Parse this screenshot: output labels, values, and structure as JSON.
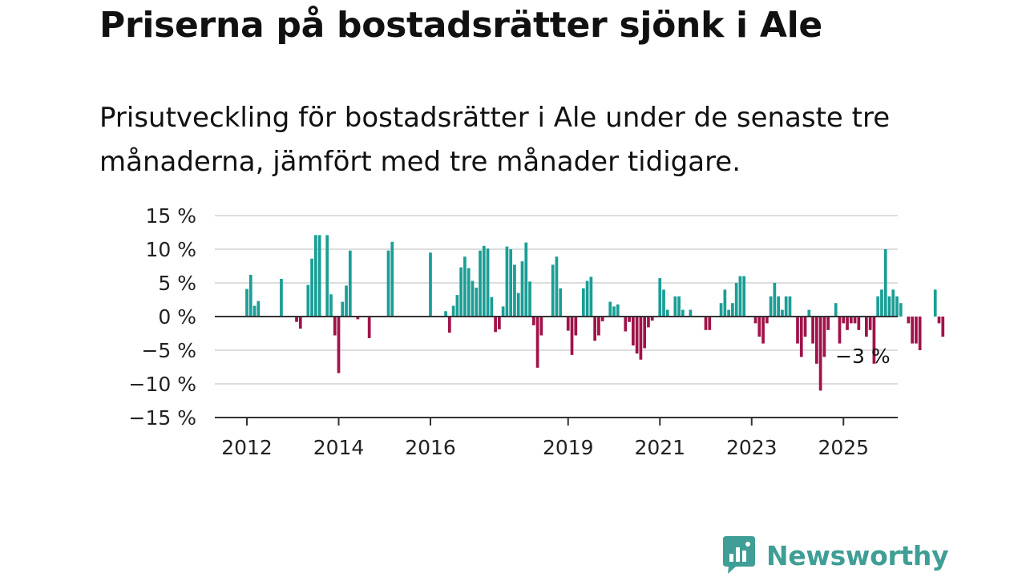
{
  "title": "Priserna på bostadsrätter sjönk i Ale",
  "subtitle": "Prisutveckling för bostadsrätter i Ale under de senaste tre månaderna, jämfört med tre månader tidigare.",
  "brand": {
    "name": "Newsworthy",
    "color": "#3f9e95",
    "icon": "chat-bubble-bar-chart-icon"
  },
  "chart_data": {
    "type": "bar",
    "x_start": "2012-01",
    "x_end": "2025-06",
    "x_unit": "month",
    "ylim": [
      -15,
      15
    ],
    "yticks": [
      15,
      10,
      5,
      0,
      -5,
      -10,
      -15
    ],
    "ytick_labels": [
      "15 %",
      "10 %",
      "5 %",
      "0 %",
      "−5 %",
      "−10 %",
      "−15 %"
    ],
    "xticks": [
      "2012",
      "2014",
      "2016",
      "2019",
      "2021",
      "2023",
      "2025"
    ],
    "grid": true,
    "colors": {
      "positive": "#1a9e96",
      "negative": "#a0134a",
      "grid": "#dddddd",
      "axis": "#333333"
    },
    "values": [
      4.1,
      6.2,
      1.6,
      2.3,
      0,
      0,
      0,
      0,
      0,
      5.6,
      0,
      0,
      0,
      -0.8,
      -1.8,
      0,
      4.7,
      8.6,
      12.1,
      12.1,
      0,
      12.1,
      3.3,
      -2.8,
      -8.4,
      2.2,
      4.6,
      9.8,
      0,
      -0.4,
      0,
      0,
      -3.2,
      0,
      0,
      0,
      0,
      9.8,
      11.1,
      0,
      0,
      0,
      0,
      0,
      0,
      0,
      0,
      0,
      9.5,
      0,
      0,
      0,
      0.8,
      -2.4,
      1.6,
      3.2,
      7.3,
      8.9,
      7.2,
      5.3,
      4.3,
      9.8,
      10.5,
      10.1,
      2.9,
      -2.3,
      -1.9,
      1.5,
      10.4,
      10.0,
      7.7,
      3.5,
      8.2,
      11.0,
      5.2,
      -1.3,
      -7.6,
      -2.8,
      0,
      0,
      7.7,
      8.9,
      4.2,
      0,
      -2.1,
      -5.7,
      -2.8,
      0,
      4.2,
      5.3,
      5.9,
      -3.6,
      -2.8,
      -0.7,
      0,
      2.2,
      1.5,
      1.8,
      0,
      -2.2,
      -0.8,
      -4.3,
      -5.5,
      -6.4,
      -4.7,
      -1.6,
      -0.6,
      0,
      5.7,
      4.0,
      1.0,
      0,
      3.0,
      3.0,
      1.0,
      0,
      1.0,
      0,
      0,
      0,
      -2.0,
      -2.0,
      0,
      0,
      2.0,
      4.0,
      1.0,
      2.0,
      5.0,
      6.0,
      6.0,
      0,
      0,
      -1.0,
      -3.0,
      -4.0,
      -1.0,
      3.0,
      5.0,
      3.0,
      1.0,
      3.0,
      3.0,
      0,
      -4.0,
      -6.0,
      -3.0,
      1.0,
      -4.0,
      -7.0,
      -11.0,
      -6.0,
      -2.0,
      0,
      2.0,
      -4.0,
      -1.0,
      -2.0,
      -1.0,
      -1.0,
      -2.0,
      0,
      -3.0,
      -2.0,
      -7.0,
      3.0,
      4.0,
      10.0,
      3.0,
      4.0,
      3.0,
      2.0,
      0,
      -1.0,
      -4.0,
      -4.0,
      -5.0,
      0,
      0,
      0,
      4.0,
      -1.0,
      -3.0
    ],
    "annotations": [
      {
        "x": "2025-06",
        "y": -3,
        "text": "−3 %"
      }
    ]
  }
}
